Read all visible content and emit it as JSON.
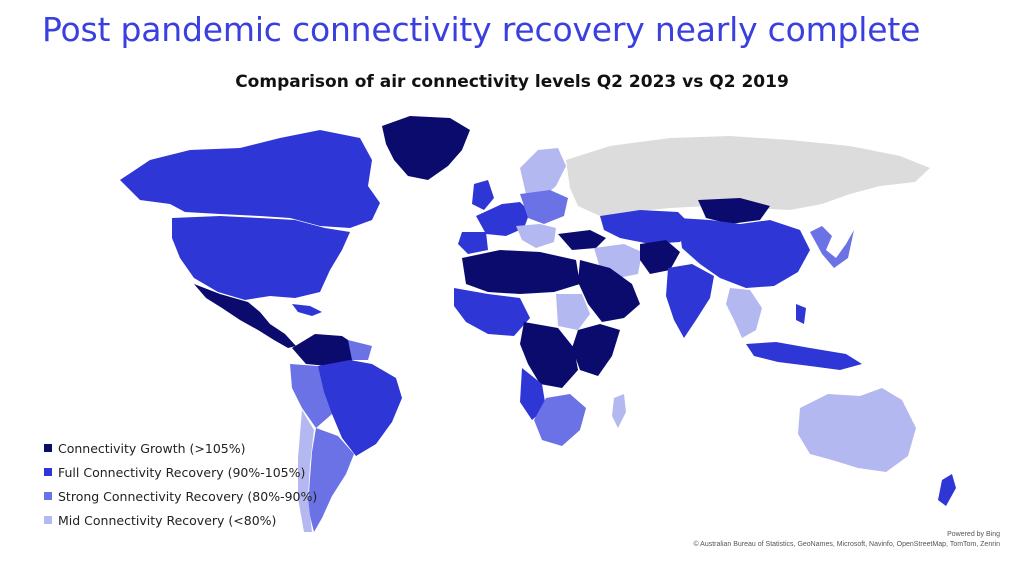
{
  "headline": "Post pandemic connectivity recovery nearly complete",
  "subtitle": "Comparison of air connectivity levels Q2 2023 vs Q2 2019",
  "colors": {
    "growth": "#0b0b6e",
    "full": "#2f36d6",
    "strong": "#6b72e6",
    "mid": "#b4b8f0",
    "nodata": "#dcdcdc"
  },
  "legend": [
    {
      "label": "Connectivity Growth (>105%)",
      "color": "#0b0b6e"
    },
    {
      "label": "Full Connectivity Recovery (90%-105%)",
      "color": "#2f36d6"
    },
    {
      "label": "Strong Connectivity Recovery (80%-90%)",
      "color": "#6b72e6"
    },
    {
      "label": "Mid Connectivity Recovery (<80%)",
      "color": "#b4b8f0"
    }
  ],
  "credits": {
    "powered": "Powered by Bing",
    "attribution": "© Australian Bureau of Statistics, GeoNames, Microsoft, Navinfo, OpenStreetMap, TomTom, Zenrin"
  }
}
